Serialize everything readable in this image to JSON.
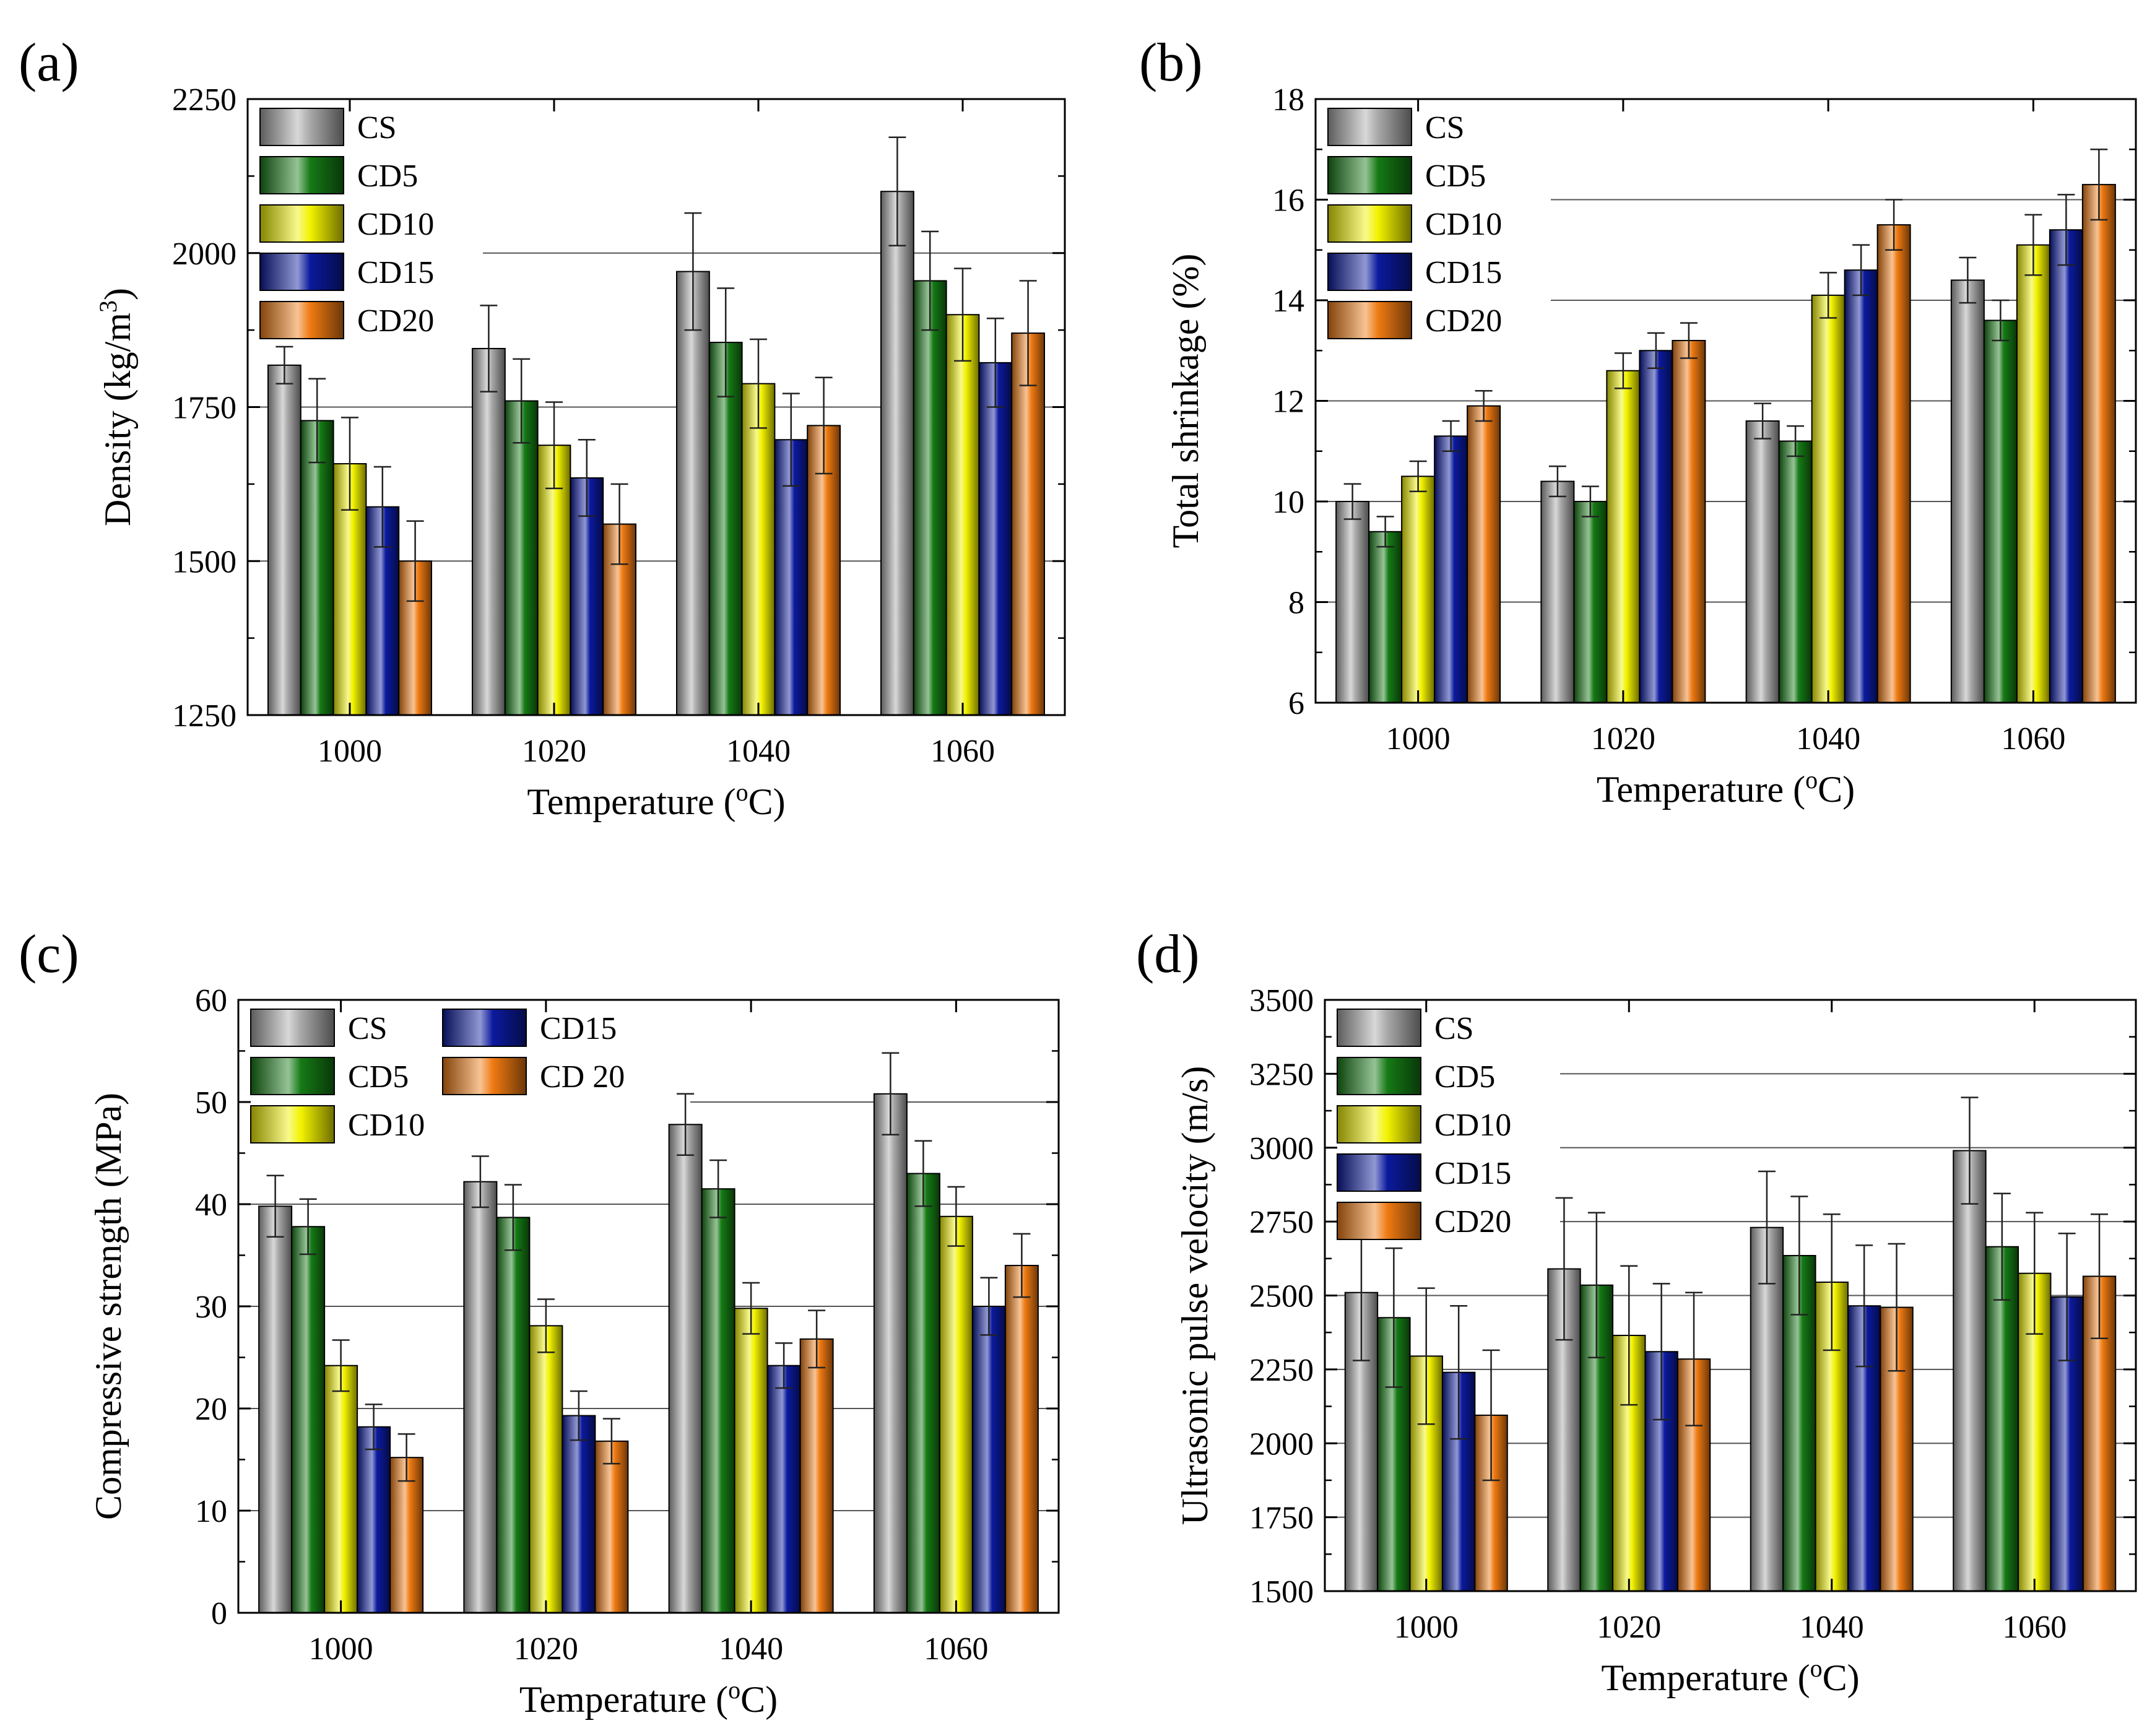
{
  "colors": {
    "CS": "#a8a8a8",
    "CD5": "#157a15",
    "CD10": "#f2f200",
    "CD15": "#0b1a9e",
    "CD20": "#ef7a12"
  },
  "chart_data": [
    {
      "panel": "(a)",
      "type": "bar",
      "categories": [
        "1000",
        "1020",
        "1040",
        "1060"
      ],
      "xlabel": "Temperature (oC)",
      "ylabel": "Density (kg/m3)",
      "ylim": [
        1250,
        2250
      ],
      "yticks": [
        1250,
        1500,
        1750,
        2000,
        2250
      ],
      "gridlines": [
        1500,
        1750,
        2000
      ],
      "legend": {
        "position": "top-left",
        "columns": 1
      },
      "series": [
        {
          "name": "CS",
          "color_key": "CS",
          "values": [
            1818,
            1845,
            1970,
            2100
          ],
          "errors": [
            30,
            70,
            95,
            88
          ]
        },
        {
          "name": "CD5",
          "color_key": "CD5",
          "values": [
            1728,
            1760,
            1855,
            1955
          ],
          "errors": [
            68,
            68,
            88,
            80
          ]
        },
        {
          "name": "CD10",
          "color_key": "CD10",
          "values": [
            1658,
            1688,
            1788,
            1900
          ],
          "errors": [
            75,
            70,
            72,
            75
          ]
        },
        {
          "name": "CD15",
          "color_key": "CD15",
          "values": [
            1588,
            1635,
            1697,
            1822
          ],
          "errors": [
            65,
            62,
            75,
            72
          ]
        },
        {
          "name": "CD20",
          "color_key": "CD20",
          "values": [
            1500,
            1560,
            1720,
            1870
          ],
          "errors": [
            65,
            65,
            78,
            85
          ]
        }
      ]
    },
    {
      "panel": "(b)",
      "type": "bar",
      "categories": [
        "1000",
        "1020",
        "1040",
        "1060"
      ],
      "xlabel": "Temperature (oC)",
      "ylabel": "Total shrinkage (%)",
      "ylim": [
        6,
        18
      ],
      "yticks": [
        6,
        8,
        10,
        12,
        14,
        16,
        18
      ],
      "gridlines": [
        8,
        10,
        12,
        14,
        16
      ],
      "legend": {
        "position": "top-left",
        "columns": 1
      },
      "series": [
        {
          "name": "CS",
          "color_key": "CS",
          "values": [
            10.0,
            10.4,
            11.6,
            14.4
          ],
          "errors": [
            0.35,
            0.3,
            0.35,
            0.45
          ]
        },
        {
          "name": "CD5",
          "color_key": "CD5",
          "values": [
            9.4,
            10.0,
            11.2,
            13.6
          ],
          "errors": [
            0.3,
            0.3,
            0.3,
            0.4
          ]
        },
        {
          "name": "CD10",
          "color_key": "CD10",
          "values": [
            10.5,
            12.6,
            14.1,
            15.1
          ],
          "errors": [
            0.3,
            0.35,
            0.45,
            0.6
          ]
        },
        {
          "name": "CD15",
          "color_key": "CD15",
          "values": [
            11.3,
            13.0,
            14.6,
            15.4
          ],
          "errors": [
            0.3,
            0.35,
            0.5,
            0.7
          ]
        },
        {
          "name": "CD20",
          "color_key": "CD20",
          "values": [
            11.9,
            13.2,
            15.5,
            16.3
          ],
          "errors": [
            0.3,
            0.35,
            0.5,
            0.7
          ]
        }
      ]
    },
    {
      "panel": "(c)",
      "type": "bar",
      "categories": [
        "1000",
        "1020",
        "1040",
        "1060"
      ],
      "xlabel": "Temperature (oC)",
      "ylabel": "Compressive strength (MPa)",
      "ylim": [
        0,
        60
      ],
      "yticks": [
        0,
        10,
        20,
        30,
        40,
        50,
        60
      ],
      "gridlines": [
        10,
        20,
        30,
        40,
        50
      ],
      "legend": {
        "position": "top-left",
        "columns": 2
      },
      "series": [
        {
          "name": "CS",
          "color_key": "CS",
          "values": [
            39.8,
            42.2,
            47.8,
            50.8
          ],
          "errors": [
            3.0,
            2.5,
            3.0,
            4.0
          ]
        },
        {
          "name": "CD5",
          "color_key": "CD5",
          "values": [
            37.8,
            38.7,
            41.5,
            43.0
          ],
          "errors": [
            2.7,
            3.2,
            2.8,
            3.2
          ]
        },
        {
          "name": "CD10",
          "color_key": "CD10",
          "values": [
            24.2,
            28.1,
            29.8,
            38.8
          ],
          "errors": [
            2.5,
            2.6,
            2.5,
            2.9
          ]
        },
        {
          "name": "CD15",
          "color_key": "CD15",
          "values": [
            18.2,
            19.3,
            24.2,
            30.0
          ],
          "errors": [
            2.2,
            2.4,
            2.2,
            2.8
          ]
        },
        {
          "name": "CD 20",
          "color_key": "CD20",
          "values": [
            15.2,
            16.8,
            26.8,
            34.0
          ],
          "errors": [
            2.3,
            2.2,
            2.8,
            3.1
          ]
        }
      ]
    },
    {
      "panel": "(d)",
      "type": "bar",
      "categories": [
        "1000",
        "1020",
        "1040",
        "1060"
      ],
      "xlabel": "Temperature (oC)",
      "ylabel": "Ultrasonic pulse velocity (m/s)",
      "ylim": [
        1500,
        3500
      ],
      "yticks": [
        1500,
        1750,
        2000,
        2250,
        2500,
        2750,
        3000,
        3250,
        3500
      ],
      "gridlines": [
        1750,
        2000,
        2250,
        2500,
        2750,
        3000,
        3250
      ],
      "legend": {
        "position": "top-left",
        "columns": 1
      },
      "series": [
        {
          "name": "CS",
          "color_key": "CS",
          "values": [
            2510,
            2590,
            2730,
            2990
          ],
          "errors": [
            230,
            240,
            190,
            180
          ]
        },
        {
          "name": "CD5",
          "color_key": "CD5",
          "values": [
            2425,
            2535,
            2635,
            2665
          ],
          "errors": [
            235,
            245,
            200,
            180
          ]
        },
        {
          "name": "CD10",
          "color_key": "CD10",
          "values": [
            2295,
            2365,
            2545,
            2575
          ],
          "errors": [
            230,
            235,
            230,
            205
          ]
        },
        {
          "name": "CD15",
          "color_key": "CD15",
          "values": [
            2240,
            2310,
            2465,
            2495
          ],
          "errors": [
            225,
            230,
            205,
            215
          ]
        },
        {
          "name": "CD20",
          "color_key": "CD20",
          "values": [
            2095,
            2285,
            2460,
            2565
          ],
          "errors": [
            220,
            225,
            215,
            210
          ]
        }
      ]
    }
  ]
}
